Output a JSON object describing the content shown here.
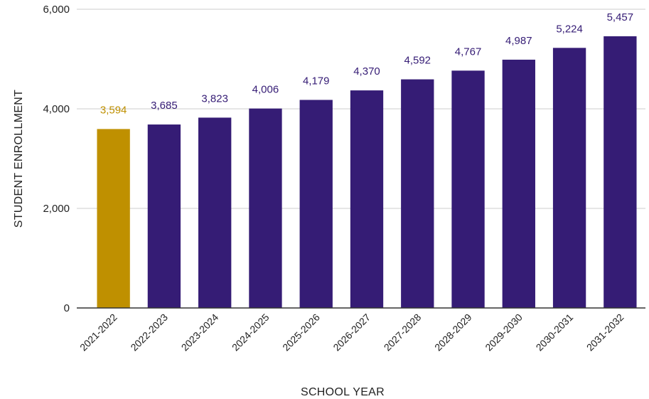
{
  "chart_data": {
    "type": "bar",
    "xlabel": "SCHOOL YEAR",
    "ylabel": "STUDENT ENROLLMENT",
    "ylim": [
      0,
      6000
    ],
    "yticks": [
      0,
      2000,
      4000,
      6000
    ],
    "ytick_labels": [
      "0",
      "2,000",
      "4,000",
      "6,000"
    ],
    "grid": true,
    "categories": [
      "2021-2022",
      "2022-2023",
      "2023-2024",
      "2024-2025",
      "2025-2026",
      "2026-2027",
      "2027-2028",
      "2028-2029",
      "2029-2030",
      "2030-2031",
      "2031-2032"
    ],
    "values": [
      3594,
      3685,
      3823,
      4006,
      4179,
      4370,
      4592,
      4767,
      4987,
      5224,
      5457
    ],
    "value_labels": [
      "3,594",
      "3,685",
      "3,823",
      "4,006",
      "4,179",
      "4,370",
      "4,592",
      "4,767",
      "4,987",
      "5,224",
      "5,457"
    ],
    "colors": {
      "highlight": "#bf9000",
      "bar": "#351c75",
      "grid": "#cccccc",
      "axis": "#333333"
    },
    "highlight_index": 0
  }
}
